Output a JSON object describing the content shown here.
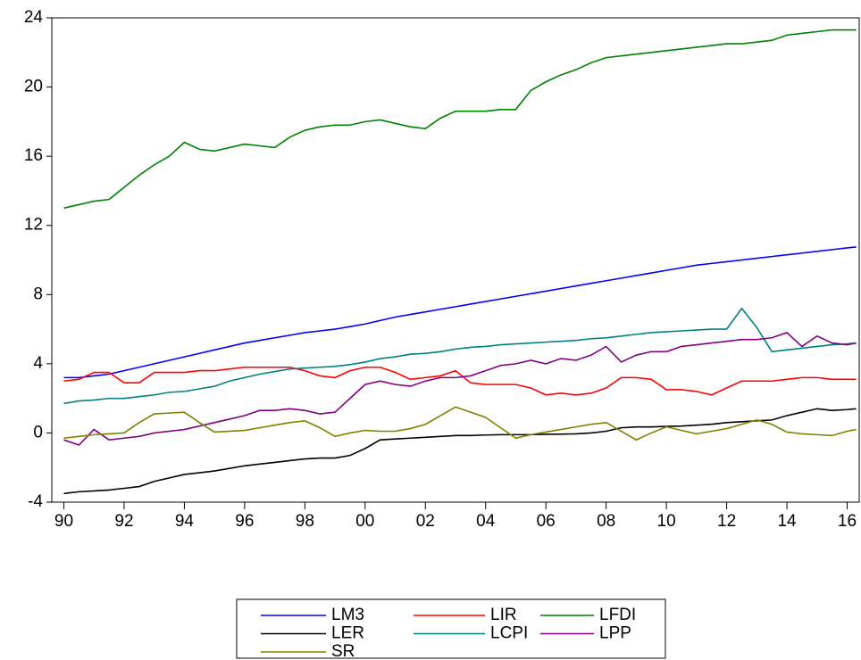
{
  "chart_data": {
    "type": "line",
    "x": [
      1990,
      1990.5,
      1991,
      1991.5,
      1992,
      1992.5,
      1993,
      1993.5,
      1994,
      1994.5,
      1995,
      1995.5,
      1996,
      1996.5,
      1997,
      1997.5,
      1998,
      1998.5,
      1999,
      1999.5,
      2000,
      2000.5,
      2001,
      2001.5,
      2002,
      2002.5,
      2003,
      2003.5,
      2004,
      2004.5,
      2005,
      2005.5,
      2006,
      2006.5,
      2007,
      2007.5,
      2008,
      2008.5,
      2009,
      2009.5,
      2010,
      2010.5,
      2011,
      2011.5,
      2012,
      2012.5,
      2013,
      2013.5,
      2014,
      2014.5,
      2015,
      2015.5,
      2016,
      2016.3
    ],
    "xlim": [
      1989.6,
      2016.4
    ],
    "xticks": [
      {
        "value": 1990,
        "label": "90"
      },
      {
        "value": 1992,
        "label": "92"
      },
      {
        "value": 1994,
        "label": "94"
      },
      {
        "value": 1996,
        "label": "96"
      },
      {
        "value": 1998,
        "label": "98"
      },
      {
        "value": 2000,
        "label": "00"
      },
      {
        "value": 2002,
        "label": "02"
      },
      {
        "value": 2004,
        "label": "04"
      },
      {
        "value": 2006,
        "label": "06"
      },
      {
        "value": 2008,
        "label": "08"
      },
      {
        "value": 2010,
        "label": "10"
      },
      {
        "value": 2012,
        "label": "12"
      },
      {
        "value": 2014,
        "label": "14"
      },
      {
        "value": 2016,
        "label": "16"
      }
    ],
    "ylim": [
      -4,
      24
    ],
    "yticks": [
      -4,
      0,
      4,
      8,
      12,
      16,
      20,
      24
    ],
    "series": [
      {
        "name": "LM3",
        "color": "#0000ff",
        "values": [
          3.2,
          3.2,
          3.3,
          3.4,
          3.6,
          3.8,
          4.0,
          4.2,
          4.4,
          4.6,
          4.8,
          5.0,
          5.2,
          5.35,
          5.5,
          5.65,
          5.8,
          5.9,
          6.0,
          6.15,
          6.3,
          6.5,
          6.7,
          6.85,
          7.0,
          7.15,
          7.3,
          7.45,
          7.6,
          7.75,
          7.9,
          8.05,
          8.2,
          8.35,
          8.5,
          8.65,
          8.8,
          8.95,
          9.1,
          9.25,
          9.4,
          9.55,
          9.7,
          9.8,
          9.9,
          10.0,
          10.1,
          10.2,
          10.3,
          10.4,
          10.5,
          10.6,
          10.7,
          10.75
        ]
      },
      {
        "name": "LIR",
        "color": "#ff0000",
        "values": [
          3.0,
          3.1,
          3.5,
          3.5,
          2.9,
          2.9,
          3.5,
          3.5,
          3.5,
          3.6,
          3.6,
          3.7,
          3.8,
          3.8,
          3.8,
          3.8,
          3.6,
          3.3,
          3.2,
          3.6,
          3.8,
          3.8,
          3.5,
          3.1,
          3.2,
          3.3,
          3.6,
          2.9,
          2.8,
          2.8,
          2.8,
          2.6,
          2.2,
          2.3,
          2.2,
          2.3,
          2.6,
          3.2,
          3.2,
          3.1,
          2.5,
          2.5,
          2.4,
          2.2,
          2.6,
          3.0,
          3.0,
          3.0,
          3.1,
          3.2,
          3.2,
          3.1,
          3.1,
          3.1
        ]
      },
      {
        "name": "LFDI",
        "color": "#008000",
        "values": [
          13.0,
          13.2,
          13.4,
          13.5,
          14.2,
          14.9,
          15.5,
          16.0,
          16.8,
          16.4,
          16.3,
          16.5,
          16.7,
          16.6,
          16.5,
          17.1,
          17.5,
          17.7,
          17.8,
          17.8,
          18.0,
          18.1,
          17.9,
          17.7,
          17.6,
          18.2,
          18.6,
          18.6,
          18.6,
          18.7,
          18.7,
          19.8,
          20.3,
          20.7,
          21.0,
          21.4,
          21.7,
          21.8,
          21.9,
          22.0,
          22.1,
          22.2,
          22.3,
          22.4,
          22.5,
          22.5,
          22.6,
          22.7,
          23.0,
          23.1,
          23.2,
          23.3,
          23.3,
          23.3
        ]
      },
      {
        "name": "LER",
        "color": "#000000",
        "values": [
          -3.5,
          -3.4,
          -3.35,
          -3.3,
          -3.2,
          -3.1,
          -2.8,
          -2.6,
          -2.4,
          -2.3,
          -2.2,
          -2.05,
          -1.9,
          -1.8,
          -1.7,
          -1.6,
          -1.5,
          -1.45,
          -1.45,
          -1.3,
          -0.9,
          -0.4,
          -0.35,
          -0.3,
          -0.25,
          -0.2,
          -0.15,
          -0.15,
          -0.12,
          -0.1,
          -0.1,
          -0.1,
          -0.08,
          -0.07,
          -0.05,
          0.0,
          0.1,
          0.3,
          0.35,
          0.35,
          0.38,
          0.4,
          0.45,
          0.5,
          0.6,
          0.65,
          0.7,
          0.75,
          1.0,
          1.2,
          1.4,
          1.3,
          1.35,
          1.4
        ]
      },
      {
        "name": "LCPI",
        "color": "#008080",
        "values": [
          1.7,
          1.85,
          1.9,
          2.0,
          2.0,
          2.1,
          2.2,
          2.35,
          2.4,
          2.55,
          2.7,
          3.0,
          3.2,
          3.4,
          3.55,
          3.7,
          3.75,
          3.8,
          3.85,
          3.95,
          4.1,
          4.3,
          4.4,
          4.55,
          4.6,
          4.7,
          4.85,
          4.95,
          5.0,
          5.1,
          5.15,
          5.2,
          5.25,
          5.3,
          5.35,
          5.45,
          5.5,
          5.6,
          5.7,
          5.8,
          5.85,
          5.9,
          5.95,
          6.0,
          6.0,
          7.2,
          6.1,
          4.7,
          4.8,
          4.9,
          5.0,
          5.1,
          5.15,
          5.2
        ]
      },
      {
        "name": "LPP",
        "color": "#800080",
        "values": [
          -0.4,
          -0.7,
          0.2,
          -0.4,
          -0.3,
          -0.2,
          0.0,
          0.1,
          0.2,
          0.4,
          0.6,
          0.8,
          1.0,
          1.3,
          1.3,
          1.4,
          1.3,
          1.1,
          1.2,
          2.0,
          2.8,
          3.0,
          2.8,
          2.7,
          3.0,
          3.2,
          3.2,
          3.3,
          3.6,
          3.9,
          4.0,
          4.2,
          4.0,
          4.3,
          4.2,
          4.5,
          5.0,
          4.1,
          4.5,
          4.7,
          4.7,
          5.0,
          5.1,
          5.2,
          5.3,
          5.4,
          5.4,
          5.5,
          5.8,
          5.0,
          5.6,
          5.2,
          5.1,
          5.2
        ]
      },
      {
        "name": "SR",
        "color": "#808000",
        "values": [
          -0.3,
          -0.2,
          -0.1,
          -0.05,
          0.0,
          0.6,
          1.1,
          1.15,
          1.2,
          0.6,
          0.05,
          0.1,
          0.15,
          0.3,
          0.45,
          0.6,
          0.7,
          0.3,
          -0.2,
          0.0,
          0.15,
          0.1,
          0.1,
          0.25,
          0.5,
          1.0,
          1.5,
          1.2,
          0.9,
          0.3,
          -0.3,
          -0.1,
          0.05,
          0.2,
          0.35,
          0.5,
          0.6,
          0.1,
          -0.4,
          0.0,
          0.35,
          0.15,
          -0.05,
          0.1,
          0.25,
          0.5,
          0.75,
          0.5,
          0.05,
          -0.05,
          -0.1,
          -0.15,
          0.1,
          0.2
        ]
      }
    ]
  }
}
